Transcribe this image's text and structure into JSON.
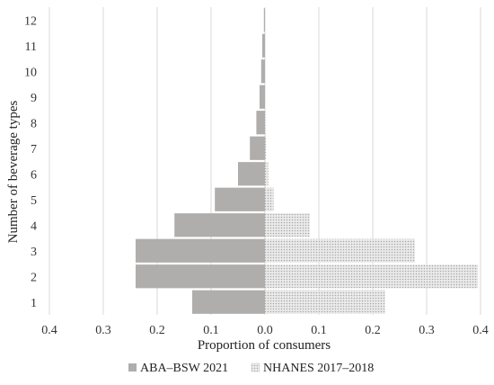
{
  "chart_data": {
    "type": "bar",
    "orientation": "horizontal-population-pyramid",
    "xlabel": "Proportion of consumers",
    "ylabel": "Number of beverage types",
    "x_tick_labels": [
      "0.4",
      "0.3",
      "0.2",
      "0.1",
      "0.0",
      "0.1",
      "0.2",
      "0.3",
      "0.4"
    ],
    "xlim": [
      -0.4,
      0.4
    ],
    "categories": [
      "1",
      "2",
      "3",
      "4",
      "5",
      "6",
      "7",
      "8",
      "9",
      "10",
      "11",
      "12"
    ],
    "grid": "vertical",
    "legend_position": "bottom",
    "series": [
      {
        "name": "ABA–BSW 2021",
        "side": "left",
        "color": "#b0adad",
        "pattern": "solid",
        "values": [
          0.135,
          0.24,
          0.24,
          0.168,
          0.093,
          0.05,
          0.028,
          0.016,
          0.01,
          0.007,
          0.005,
          0.002
        ]
      },
      {
        "name": "NHANES 2017–2018",
        "side": "right",
        "color": "#dcdcdc",
        "pattern": "dotted",
        "values": [
          0.223,
          0.395,
          0.278,
          0.083,
          0.016,
          0.006,
          0.002,
          0.001,
          0.0,
          0.0,
          0.0,
          0.0
        ]
      }
    ]
  }
}
